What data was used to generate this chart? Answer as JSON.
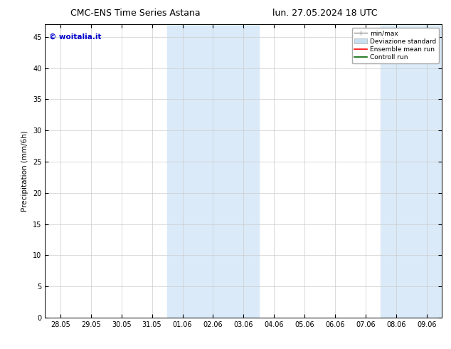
{
  "title_left": "CMC-ENS Time Series Astana",
  "title_right": "lun. 27.05.2024 18 UTC",
  "ylabel": "Precipitation (mm/6h)",
  "watermark": "© woitalia.it",
  "watermark_color": "#0000cc",
  "background_color": "#ffffff",
  "plot_bg_color": "#ffffff",
  "ymin": 0,
  "ymax": 47,
  "yticks": [
    0,
    5,
    10,
    15,
    20,
    25,
    30,
    35,
    40,
    45
  ],
  "xtick_labels": [
    "28.05",
    "29.05",
    "30.05",
    "31.05",
    "01.06",
    "02.06",
    "03.06",
    "04.06",
    "05.06",
    "06.06",
    "07.06",
    "08.06",
    "09.06"
  ],
  "shaded_regions": [
    {
      "xstart": 4,
      "xend": 5
    },
    {
      "xstart": 5,
      "xend": 6
    },
    {
      "xstart": 11,
      "xend": 12
    }
  ],
  "shade_color": "#daeaf8",
  "legend_labels": [
    "min/max",
    "Deviazione standard",
    "Ensemble mean run",
    "Controll run"
  ],
  "legend_colors": [
    "#999999",
    "#c8dff0",
    "#ff0000",
    "#006600"
  ],
  "grid_color": "#cccccc",
  "tick_color": "#000000",
  "spine_color": "#000000",
  "title_fontsize": 9,
  "axis_label_fontsize": 7.5,
  "tick_fontsize": 7,
  "watermark_fontsize": 7.5,
  "legend_fontsize": 6.5
}
